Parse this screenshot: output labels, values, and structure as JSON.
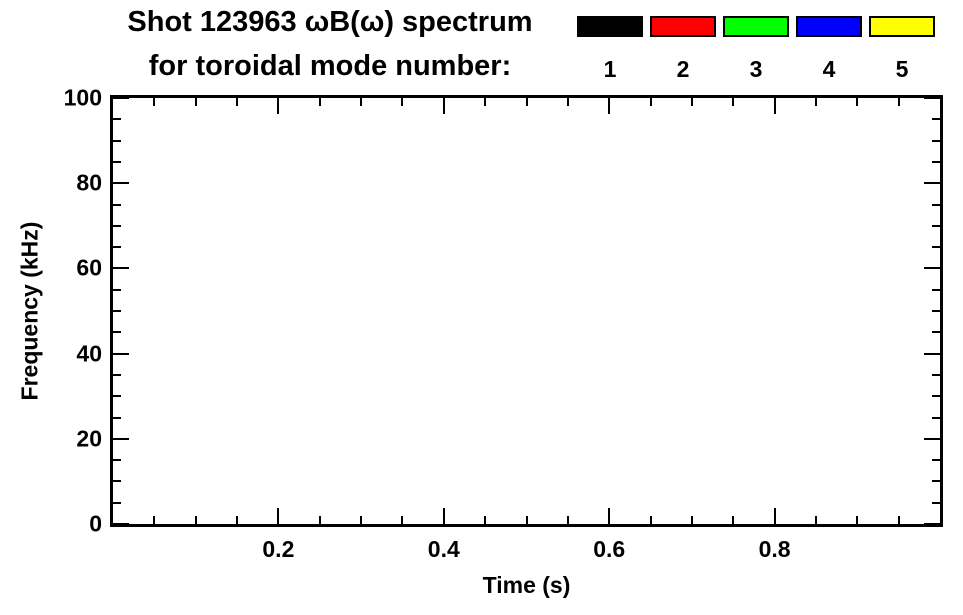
{
  "title": {
    "line1": "Shot 123963 ωB(ω) spectrum",
    "line2": "for toroidal mode number:"
  },
  "chart_data": {
    "type": "scatter",
    "title": "Shot 123963 ωB(ω) spectrum for toroidal mode number:",
    "xlabel": "Time (s)",
    "ylabel": "Frequency (kHz)",
    "xlim": [
      0.0,
      1.0
    ],
    "ylim": [
      0,
      100
    ],
    "x_ticks": [
      0.2,
      0.4,
      0.6,
      0.8
    ],
    "x_tick_labels": [
      "0.2",
      "0.4",
      "0.6",
      "0.8"
    ],
    "x_minor_step": 0.05,
    "y_ticks": [
      0,
      20,
      40,
      60,
      80,
      100
    ],
    "y_tick_labels": [
      "0",
      "20",
      "40",
      "60",
      "80",
      "100"
    ],
    "y_minor_step": 5,
    "grid": false,
    "legend": {
      "position": "top-right",
      "entries": [
        {
          "label": "1",
          "color": "#000000"
        },
        {
          "label": "2",
          "color": "#ff0000"
        },
        {
          "label": "3",
          "color": "#00ff00"
        },
        {
          "label": "4",
          "color": "#0000ff"
        },
        {
          "label": "5",
          "color": "#ffff00"
        }
      ]
    },
    "series": []
  },
  "colors": {
    "axis": "#000000",
    "background": "#ffffff"
  }
}
